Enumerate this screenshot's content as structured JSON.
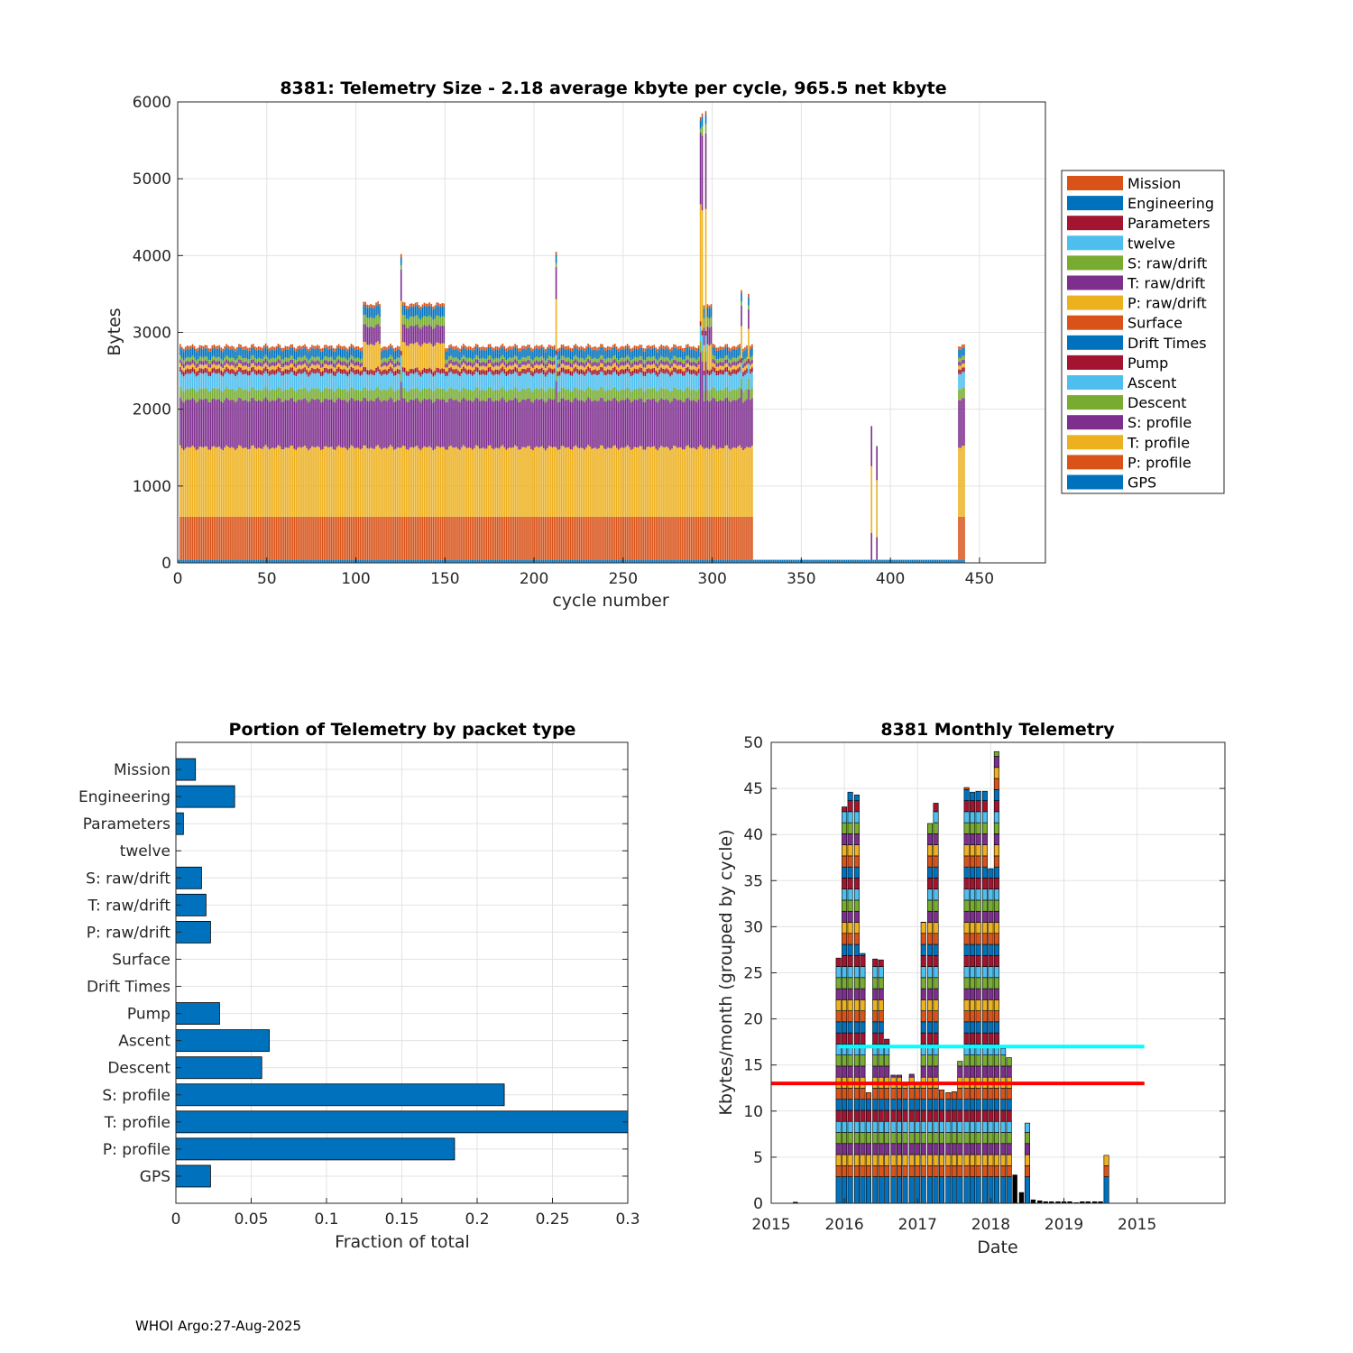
{
  "footer": "WHOI Argo:27-Aug-2025",
  "colors": {
    "blue": "#0072BD",
    "orange": "#D95319",
    "yellow": "#EDB120",
    "purple": "#7E2F8E",
    "green": "#77AC30",
    "cyan": "#4DBEEE",
    "darkred": "#A2142F",
    "line_cyan": "#00FFFF",
    "line_red": "#FF0000"
  },
  "chart_data": [
    {
      "id": "telemetry-size",
      "type": "bar",
      "stacked": true,
      "title": "8381: Telemetry Size - 2.18 average kbyte per cycle,  965.5 net kbyte",
      "xlabel": "cycle number",
      "ylabel": "Bytes",
      "xlim": [
        0,
        487
      ],
      "ylim": [
        0,
        6000
      ],
      "xticks": [
        "0",
        "50",
        "100",
        "150",
        "200",
        "250",
        "300",
        "350",
        "400",
        "450"
      ],
      "yticks": [
        "0",
        "1000",
        "2000",
        "3000",
        "4000",
        "5000",
        "6000"
      ],
      "legend_position": "outside-right",
      "legend": [
        "Mission",
        "Engineering",
        "Parameters",
        "twelve",
        "S: raw/drift",
        "T: raw/drift",
        "P: raw/drift",
        "Surface",
        "Drift Times",
        "Pump",
        "Ascent",
        "Descent",
        "S: profile",
        "T: profile",
        "P: profile",
        "GPS"
      ],
      "legend_colors": [
        "#D95319",
        "#0072BD",
        "#A2142F",
        "#4DBEEE",
        "#77AC30",
        "#7E2F8E",
        "#EDB120",
        "#D95319",
        "#0072BD",
        "#A2142F",
        "#4DBEEE",
        "#77AC30",
        "#7E2F8E",
        "#EDB120",
        "#D95319",
        "#0072BD"
      ],
      "stack_order": [
        "GPS",
        "P: profile",
        "T: profile",
        "S: profile",
        "Descent",
        "Ascent",
        "Pump",
        "P: raw/drift",
        "T: raw/drift",
        "S: raw/drift",
        "Engineering",
        "Mission"
      ],
      "profiles": {
        "normal": [
          40,
          560,
          900,
          620,
          140,
          200,
          60,
          50,
          50,
          50,
          110,
          40
        ],
        "highraw": [
          40,
          560,
          900,
          620,
          140,
          200,
          60,
          330,
          230,
          120,
          130,
          40
        ],
        "surface_only": [
          40,
          0,
          0,
          0,
          0,
          0,
          0,
          0,
          0,
          0,
          0,
          0
        ]
      },
      "cycle_profile_ranges": [
        {
          "from": 0,
          "to": 1,
          "profile": "surface_only"
        },
        {
          "from": 1,
          "to": 104,
          "profile": "normal"
        },
        {
          "from": 104,
          "to": 114,
          "profile": "highraw"
        },
        {
          "from": 114,
          "to": 126,
          "profile": "normal"
        },
        {
          "from": 126,
          "to": 150,
          "profile": "highraw"
        },
        {
          "from": 150,
          "to": 294,
          "profile": "normal"
        },
        {
          "from": 294,
          "to": 300,
          "profile": "highraw"
        },
        {
          "from": 300,
          "to": 323,
          "profile": "normal"
        },
        {
          "from": 323,
          "to": 438,
          "profile": "surface_only"
        },
        {
          "from": 438,
          "to": 442,
          "profile": "normal"
        }
      ],
      "peaks": [
        {
          "cycle": 125,
          "total": 4020
        },
        {
          "cycle": 212,
          "total": 4050
        },
        {
          "cycle": 293,
          "total": 5800
        },
        {
          "cycle": 294,
          "total": 5850
        },
        {
          "cycle": 296,
          "total": 5880
        },
        {
          "cycle": 316,
          "total": 3550
        },
        {
          "cycle": 320,
          "total": 3500
        },
        {
          "cycle": 389,
          "total": 1780
        },
        {
          "cycle": 392,
          "total": 1520
        },
        {
          "cycle": 438,
          "total": 1450
        },
        {
          "cycle": 440,
          "total": 1280
        }
      ]
    },
    {
      "id": "packet-portion",
      "type": "bar",
      "orientation": "horizontal",
      "title": "Portion of Telemetry by packet type",
      "xlabel": "Fraction of total",
      "ylabel": "",
      "xlim": [
        0,
        0.3
      ],
      "xticks": [
        "0",
        "0.05",
        "0.1",
        "0.15",
        "0.2",
        "0.25",
        "0.3"
      ],
      "categories": [
        "Mission",
        "Engineering",
        "Parameters",
        "twelve",
        "S: raw/drift",
        "T: raw/drift",
        "P: raw/drift",
        "Surface",
        "Drift Times",
        "Pump",
        "Ascent",
        "Descent",
        "S: profile",
        "T: profile",
        "P: profile",
        "GPS"
      ],
      "values": [
        0.013,
        0.039,
        0.005,
        0,
        0.017,
        0.02,
        0.023,
        0,
        0,
        0.029,
        0.062,
        0.057,
        0.218,
        0.3,
        0.185,
        0.023
      ]
    },
    {
      "id": "monthly-telemetry",
      "type": "bar",
      "stacked": true,
      "title": "8381 Monthly Telemetry",
      "xlabel": "Date",
      "ylabel": "Kbytes/month (grouped by cycle)",
      "ylim": [
        0,
        50
      ],
      "yticks": [
        "0",
        "5",
        "10",
        "15",
        "20",
        "25",
        "30",
        "35",
        "40",
        "45",
        "50"
      ],
      "xticks": [
        "2015",
        "2016",
        "2017",
        "2018",
        "2019",
        "2015"
      ],
      "xlim_years": [
        2015.0,
        2021.2
      ],
      "segment_kb": 1.2,
      "segment_colors": [
        "#0072BD",
        "#D95319",
        "#EDB120",
        "#7E2F8E",
        "#77AC30",
        "#4DBEEE",
        "#A2142F"
      ],
      "months": [
        {
          "t": 2015.33,
          "value": 0.15,
          "black": true
        },
        {
          "t": 2015.92,
          "value": 26.6
        },
        {
          "t": 2016.0,
          "value": 43.0
        },
        {
          "t": 2016.08,
          "value": 44.6
        },
        {
          "t": 2016.17,
          "value": 44.3
        },
        {
          "t": 2016.25,
          "value": 27.1
        },
        {
          "t": 2016.33,
          "value": 12.0
        },
        {
          "t": 2016.42,
          "value": 26.5
        },
        {
          "t": 2016.5,
          "value": 26.4
        },
        {
          "t": 2016.58,
          "value": 17.8
        },
        {
          "t": 2016.67,
          "value": 13.9
        },
        {
          "t": 2016.75,
          "value": 13.9
        },
        {
          "t": 2016.83,
          "value": 12.8
        },
        {
          "t": 2016.92,
          "value": 14.0
        },
        {
          "t": 2017.0,
          "value": 13.0
        },
        {
          "t": 2017.08,
          "value": 30.5
        },
        {
          "t": 2017.17,
          "value": 41.2
        },
        {
          "t": 2017.25,
          "value": 43.4
        },
        {
          "t": 2017.33,
          "value": 12.3
        },
        {
          "t": 2017.42,
          "value": 12.0
        },
        {
          "t": 2017.5,
          "value": 12.1
        },
        {
          "t": 2017.58,
          "value": 15.4
        },
        {
          "t": 2017.67,
          "value": 45.1
        },
        {
          "t": 2017.75,
          "value": 44.6
        },
        {
          "t": 2017.83,
          "value": 44.7
        },
        {
          "t": 2017.92,
          "value": 44.7
        },
        {
          "t": 2018.0,
          "value": 36.3
        },
        {
          "t": 2018.08,
          "value": 49.0
        },
        {
          "t": 2018.17,
          "value": 16.8
        },
        {
          "t": 2018.25,
          "value": 15.8
        },
        {
          "t": 2018.33,
          "value": 3.1,
          "black": true
        },
        {
          "t": 2018.42,
          "value": 1.2,
          "black": true
        },
        {
          "t": 2018.5,
          "value": 8.7
        },
        {
          "t": 2018.58,
          "value": 0.4,
          "black": true
        },
        {
          "t": 2018.67,
          "value": 0.3,
          "black": true
        },
        {
          "t": 2018.75,
          "value": 0.2,
          "black": true
        },
        {
          "t": 2018.83,
          "value": 0.2,
          "black": true
        },
        {
          "t": 2018.92,
          "value": 0.2,
          "black": true
        },
        {
          "t": 2019.0,
          "value": 0.2,
          "black": true
        },
        {
          "t": 2019.08,
          "value": 0.2,
          "black": true
        },
        {
          "t": 2019.17,
          "value": 0.1,
          "black": true
        },
        {
          "t": 2019.25,
          "value": 0.2,
          "black": true
        },
        {
          "t": 2019.33,
          "value": 0.2,
          "black": true
        },
        {
          "t": 2019.42,
          "value": 0.2,
          "black": true
        },
        {
          "t": 2019.5,
          "value": 0.2,
          "black": true
        },
        {
          "t": 2019.58,
          "value": 5.2
        }
      ],
      "hlines": [
        {
          "name": "cyan-threshold",
          "value": 17.0,
          "color": "#00FFFF",
          "from": 2015.92,
          "to": 2020.1
        },
        {
          "name": "red-threshold",
          "value": 13.0,
          "color": "#FF0000",
          "from": 2015.0,
          "to": 2020.1
        }
      ]
    }
  ]
}
